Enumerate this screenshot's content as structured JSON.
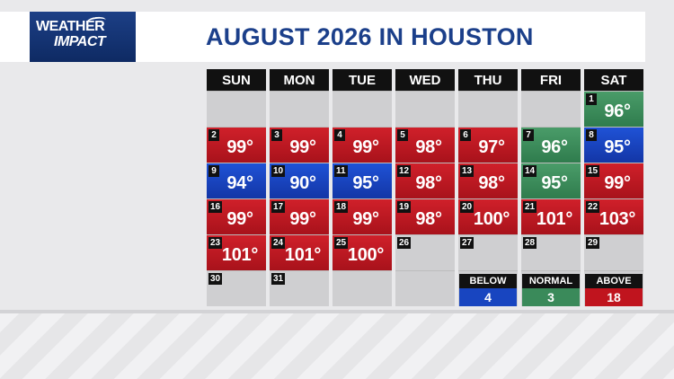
{
  "logo": {
    "line1": "WEATHER",
    "line2": "IMPACT"
  },
  "title": "AUGUST 2026 IN HOUSTON",
  "weekdays": [
    "SUN",
    "MON",
    "TUE",
    "WED",
    "THU",
    "FRI",
    "SAT"
  ],
  "days": {
    "d1": {
      "num": "1",
      "temp": "96°",
      "cat": "mild"
    },
    "d2": {
      "num": "2",
      "temp": "99°",
      "cat": "hot"
    },
    "d3": {
      "num": "3",
      "temp": "99°",
      "cat": "hot"
    },
    "d4": {
      "num": "4",
      "temp": "99°",
      "cat": "hot"
    },
    "d5": {
      "num": "5",
      "temp": "98°",
      "cat": "hot"
    },
    "d6": {
      "num": "6",
      "temp": "97°",
      "cat": "hot"
    },
    "d7": {
      "num": "7",
      "temp": "96°",
      "cat": "mild"
    },
    "d8": {
      "num": "8",
      "temp": "95°",
      "cat": "cool"
    },
    "d9": {
      "num": "9",
      "temp": "94°",
      "cat": "cool"
    },
    "d10": {
      "num": "10",
      "temp": "90°",
      "cat": "cool"
    },
    "d11": {
      "num": "11",
      "temp": "95°",
      "cat": "cool"
    },
    "d12": {
      "num": "12",
      "temp": "98°",
      "cat": "hot"
    },
    "d13": {
      "num": "13",
      "temp": "98°",
      "cat": "hot"
    },
    "d14": {
      "num": "14",
      "temp": "95°",
      "cat": "mild"
    },
    "d15": {
      "num": "15",
      "temp": "99°",
      "cat": "hot"
    },
    "d16": {
      "num": "16",
      "temp": "99°",
      "cat": "hot"
    },
    "d17": {
      "num": "17",
      "temp": "99°",
      "cat": "hot"
    },
    "d18": {
      "num": "18",
      "temp": "99°",
      "cat": "hot"
    },
    "d19": {
      "num": "19",
      "temp": "98°",
      "cat": "hot"
    },
    "d20": {
      "num": "20",
      "temp": "100°",
      "cat": "hot"
    },
    "d21": {
      "num": "21",
      "temp": "101°",
      "cat": "hot"
    },
    "d22": {
      "num": "22",
      "temp": "103°",
      "cat": "hot"
    },
    "d23": {
      "num": "23",
      "temp": "101°",
      "cat": "hot"
    },
    "d24": {
      "num": "24",
      "temp": "101°",
      "cat": "hot"
    },
    "d25": {
      "num": "25",
      "temp": "100°",
      "cat": "hot"
    },
    "d26": {
      "num": "26",
      "temp": "",
      "cat": "empty"
    },
    "d27": {
      "num": "27",
      "temp": "",
      "cat": "empty"
    },
    "d28": {
      "num": "28",
      "temp": "",
      "cat": "empty"
    },
    "d29": {
      "num": "29",
      "temp": "",
      "cat": "empty"
    },
    "d30": {
      "num": "30",
      "temp": "",
      "cat": "empty"
    },
    "d31": {
      "num": "31",
      "temp": "",
      "cat": "empty"
    }
  },
  "summary": {
    "below": {
      "label": "BELOW",
      "count": "4"
    },
    "normal": {
      "label": "NORMAL",
      "count": "3"
    },
    "above": {
      "label": "ABOVE",
      "count": "18"
    }
  },
  "colors": {
    "above": "#c0141e",
    "normal": "#3a8a5a",
    "below": "#1845c0",
    "title": "#1b3f8a"
  }
}
